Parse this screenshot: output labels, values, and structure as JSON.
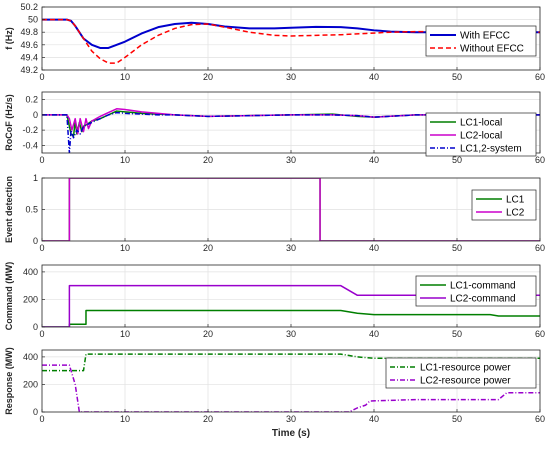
{
  "chart_data": [
    {
      "type": "line",
      "ylabel": "f (Hz)",
      "xlim": [
        0,
        60
      ],
      "ylim": [
        49.2,
        50.2
      ],
      "yticks": [
        49.2,
        49.4,
        49.6,
        49.8,
        50,
        50.2
      ],
      "xticks": [
        0,
        10,
        20,
        30,
        40,
        50,
        60
      ],
      "show_xticklabels": true,
      "grid": true,
      "legend": "top-right",
      "series": [
        {
          "name": "With EFCC",
          "color": "#0000cc",
          "dash": "",
          "width": 2,
          "x": [
            0,
            3,
            3.5,
            4,
            4.5,
            5,
            6,
            7,
            8,
            10,
            12,
            14,
            16,
            18,
            20,
            22,
            25,
            28,
            30,
            33,
            36,
            38,
            40,
            42,
            45,
            50,
            55,
            60
          ],
          "y": [
            50,
            50,
            49.98,
            49.9,
            49.8,
            49.7,
            49.6,
            49.55,
            49.55,
            49.65,
            49.78,
            49.88,
            49.93,
            49.95,
            49.93,
            49.89,
            49.86,
            49.86,
            49.87,
            49.885,
            49.88,
            49.86,
            49.83,
            49.81,
            49.8,
            49.8,
            49.8,
            49.8
          ]
        },
        {
          "name": "Without EFCC",
          "color": "#ff0000",
          "dash": "5,3",
          "width": 1.5,
          "x": [
            0,
            3,
            3.5,
            4,
            5,
            6,
            7,
            8,
            9,
            10,
            12,
            14,
            16,
            18,
            20,
            22,
            25,
            28,
            30,
            33,
            36,
            39,
            42,
            45,
            48,
            50,
            55,
            60
          ],
          "y": [
            50,
            50,
            49.98,
            49.9,
            49.7,
            49.5,
            49.38,
            49.31,
            49.31,
            49.4,
            49.6,
            49.75,
            49.86,
            49.92,
            49.93,
            49.88,
            49.8,
            49.75,
            49.74,
            49.75,
            49.76,
            49.78,
            49.8,
            49.81,
            49.81,
            49.81,
            49.8,
            49.8
          ]
        }
      ]
    },
    {
      "type": "line",
      "ylabel": "RoCoF (Hz/s)",
      "xlim": [
        0,
        60
      ],
      "ylim": [
        -0.5,
        0.3
      ],
      "yticks": [
        -0.4,
        -0.2,
        0,
        0.2
      ],
      "xticks": [
        0,
        10,
        20,
        30,
        40,
        50,
        60
      ],
      "show_xticklabels": true,
      "grid": true,
      "legend": "right",
      "series": [
        {
          "name": "LC1-local",
          "color": "#007f00",
          "dash": "",
          "width": 1.5,
          "x": [
            0,
            3,
            3.2,
            3.5,
            3.8,
            4,
            4.2,
            4.5,
            4.8,
            5,
            5.5,
            6,
            7,
            8,
            9,
            10,
            12,
            14,
            16,
            18,
            20,
            25,
            30,
            35,
            38,
            40,
            45,
            50,
            55,
            60
          ],
          "y": [
            0,
            0,
            -0.1,
            -0.25,
            -0.28,
            -0.08,
            -0.25,
            -0.1,
            -0.22,
            -0.15,
            -0.12,
            -0.08,
            -0.05,
            0,
            0.05,
            0.04,
            0.02,
            0.01,
            0,
            -0.01,
            -0.02,
            -0.01,
            0,
            0.01,
            -0.02,
            -0.03,
            0,
            0,
            0,
            0
          ]
        },
        {
          "name": "LC2-local",
          "color": "#cc00cc",
          "dash": "",
          "width": 1.5,
          "x": [
            0,
            3,
            3.3,
            3.6,
            4,
            4.3,
            4.6,
            5,
            5.3,
            5.6,
            6,
            7,
            8,
            9,
            10,
            12,
            14,
            16,
            18,
            20,
            25,
            30,
            35,
            38,
            40,
            45,
            50,
            55,
            60
          ],
          "y": [
            0,
            0,
            -0.05,
            -0.2,
            -0.05,
            -0.25,
            -0.05,
            -0.22,
            -0.05,
            -0.18,
            -0.08,
            -0.02,
            0.03,
            0.08,
            0.07,
            0.04,
            0.02,
            0,
            -0.01,
            -0.02,
            -0.01,
            0,
            0,
            -0.01,
            -0.03,
            0,
            0,
            0,
            0
          ]
        },
        {
          "name": "LC1,2-system",
          "color": "#0000cc",
          "dash": "5,2,1,2",
          "width": 1.5,
          "x": [
            0,
            3,
            3.3,
            3.5,
            3.8,
            4.2,
            4.6,
            5,
            6,
            7,
            8,
            9,
            10,
            12,
            14,
            16,
            18,
            20,
            25,
            30,
            35,
            38,
            40,
            45,
            50,
            55,
            60
          ],
          "y": [
            0,
            0,
            -0.5,
            -0.2,
            -0.3,
            -0.2,
            -0.25,
            -0.15,
            -0.1,
            -0.05,
            0,
            0.03,
            0.02,
            0.01,
            0,
            0,
            -0.01,
            -0.02,
            -0.01,
            0,
            0,
            -0.01,
            -0.03,
            0,
            0,
            0,
            0
          ]
        }
      ]
    },
    {
      "type": "line",
      "ylabel": "Event detection",
      "xlim": [
        0,
        60
      ],
      "ylim": [
        0,
        1
      ],
      "yticks": [
        0,
        0.5,
        1
      ],
      "xticks": [
        0,
        10,
        20,
        30,
        40,
        50,
        60
      ],
      "show_xticklabels": true,
      "grid": true,
      "legend": "right",
      "series": [
        {
          "name": "LC1",
          "color": "#007f00",
          "dash": "",
          "width": 1.5,
          "x": [
            0,
            3.3,
            3.3,
            33.5,
            33.5,
            60
          ],
          "y": [
            0,
            0,
            1,
            1,
            0,
            0
          ]
        },
        {
          "name": "LC2",
          "color": "#cc00cc",
          "dash": "",
          "width": 1.5,
          "x": [
            0,
            3.3,
            3.3,
            33.5,
            33.5,
            60
          ],
          "y": [
            0,
            0,
            1,
            1,
            0,
            0
          ]
        }
      ]
    },
    {
      "type": "line",
      "ylabel": "Command (MW)",
      "xlim": [
        0,
        60
      ],
      "ylim": [
        0,
        450
      ],
      "yticks": [
        0,
        200,
        400
      ],
      "xticks": [
        0,
        10,
        20,
        30,
        40,
        50,
        60
      ],
      "show_xticklabels": true,
      "grid": true,
      "legend": "right",
      "series": [
        {
          "name": "LC1-command",
          "color": "#007f00",
          "dash": "",
          "width": 1.5,
          "x": [
            0,
            3.3,
            3.3,
            5.3,
            5.3,
            36,
            38,
            40,
            45,
            50,
            54,
            55,
            60
          ],
          "y": [
            0,
            0,
            20,
            20,
            120,
            120,
            100,
            90,
            90,
            90,
            90,
            80,
            80
          ]
        },
        {
          "name": "LC2-command",
          "color": "#9900cc",
          "dash": "",
          "width": 1.5,
          "x": [
            0,
            3.3,
            3.3,
            36,
            38,
            40,
            45,
            50,
            60
          ],
          "y": [
            0,
            0,
            300,
            300,
            230,
            230,
            230,
            230,
            230
          ]
        }
      ]
    },
    {
      "type": "line",
      "ylabel": "Response (MW)",
      "xlabel": "Time (s)",
      "xlim": [
        0,
        60
      ],
      "ylim": [
        0,
        450
      ],
      "yticks": [
        0,
        200,
        400
      ],
      "xticks": [
        0,
        10,
        20,
        30,
        40,
        50,
        60
      ],
      "show_xticklabels": true,
      "grid": true,
      "legend": "right",
      "series": [
        {
          "name": "LC1-resource power",
          "color": "#007f00",
          "dash": "5,2,1,2",
          "width": 1.5,
          "x": [
            0,
            5,
            5.3,
            36,
            38,
            40,
            45,
            50,
            60
          ],
          "y": [
            300,
            300,
            420,
            420,
            400,
            390,
            390,
            390,
            390
          ]
        },
        {
          "name": "LC2-resource power",
          "color": "#9900cc",
          "dash": "5,2,1,2",
          "width": 1.5,
          "x": [
            0,
            3.3,
            4,
            4.5,
            37,
            38,
            39,
            39.5,
            45,
            50,
            55,
            56,
            60
          ],
          "y": [
            340,
            340,
            200,
            0,
            0,
            30,
            50,
            80,
            90,
            90,
            90,
            140,
            140
          ]
        }
      ]
    }
  ]
}
